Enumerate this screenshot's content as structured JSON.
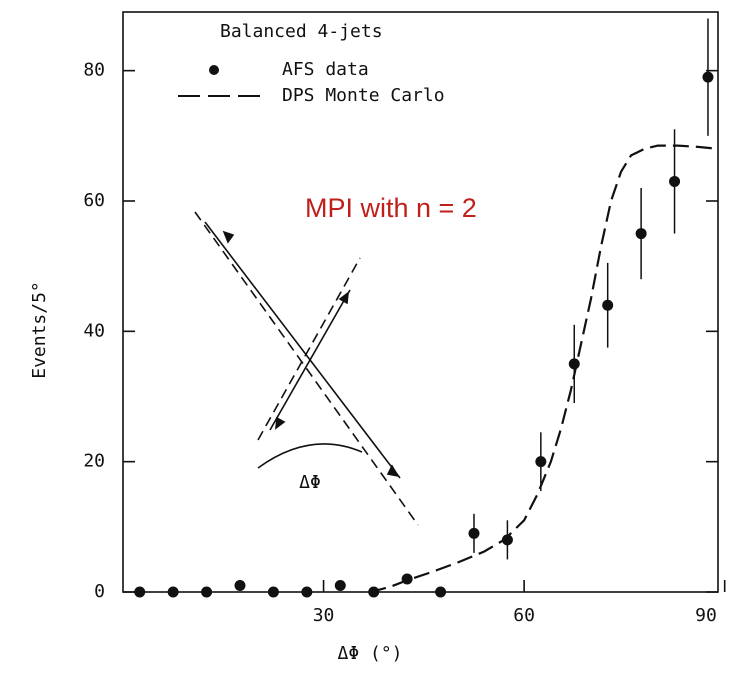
{
  "chart_data": {
    "type": "scatter",
    "xlabel": "ΔΦ (°)",
    "ylabel": "Events/5°",
    "legend_title": "Balanced 4-jets",
    "annotation": "MPI with n = 2",
    "annotation_color": "#c0201c",
    "inset_label": "ΔΦ",
    "xlim": [
      0,
      89
    ],
    "ylim": [
      0,
      89
    ],
    "xticks": [
      30,
      60,
      90
    ],
    "yticks": [
      0,
      20,
      40,
      60,
      80
    ],
    "series": [
      {
        "name": "AFS data",
        "color": "#111111",
        "x": [
          2.5,
          7.5,
          12.5,
          17.5,
          22.5,
          27.5,
          32.5,
          37.5,
          42.5,
          47.5,
          52.5,
          57.5,
          62.5,
          67.5,
          72.5,
          77.5,
          82.5,
          87.5
        ],
        "values": [
          0,
          0,
          0,
          1,
          0,
          0,
          1,
          0,
          2,
          0,
          9,
          8,
          20,
          35,
          44,
          55,
          63,
          79
        ],
        "errors": [
          0.5,
          0.5,
          0.5,
          0.8,
          0.5,
          0.5,
          0.8,
          0.5,
          1.2,
          0.5,
          3,
          3,
          4.5,
          6,
          6.5,
          7,
          8,
          9
        ]
      },
      {
        "name": "DPS Monte Carlo",
        "color": "#111111",
        "kind": "dashed-line",
        "x": [
          37,
          40,
          42.5,
          46,
          50,
          54,
          57,
          60,
          62,
          64,
          65.5,
          67,
          68.5,
          70,
          71.5,
          73,
          74.5,
          76,
          78,
          80,
          83,
          86,
          89
        ],
        "values": [
          0,
          0.8,
          1.8,
          3,
          4.5,
          6.2,
          8,
          11,
          15,
          20,
          25,
          31,
          38,
          45,
          53,
          60,
          64.5,
          67,
          68,
          68.5,
          68.5,
          68.3,
          68
        ]
      }
    ]
  }
}
